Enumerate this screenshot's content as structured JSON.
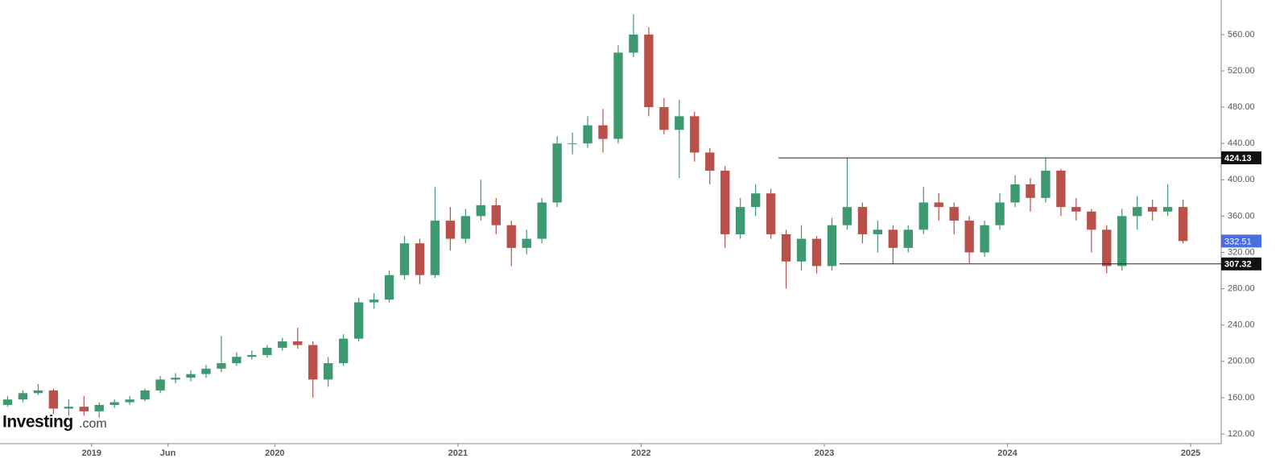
{
  "chart_data": {
    "type": "candlestick",
    "x": [
      "2018-07",
      "2018-08",
      "2018-09",
      "2018-10",
      "2018-11",
      "2018-12",
      "2019-01",
      "2019-02",
      "2019-03",
      "2019-04",
      "2019-05",
      "2019-06",
      "2019-07",
      "2019-08",
      "2019-09",
      "2019-10",
      "2019-11",
      "2019-12",
      "2020-01",
      "2020-02",
      "2020-03",
      "2020-04",
      "2020-05",
      "2020-06",
      "2020-07",
      "2020-08",
      "2020-09",
      "2020-10",
      "2020-11",
      "2020-12",
      "2021-01",
      "2021-02",
      "2021-03",
      "2021-04",
      "2021-05",
      "2021-06",
      "2021-07",
      "2021-08",
      "2021-09",
      "2021-10",
      "2021-11",
      "2021-12",
      "2022-01",
      "2022-02",
      "2022-03",
      "2022-04",
      "2022-05",
      "2022-06",
      "2022-07",
      "2022-08",
      "2022-09",
      "2022-10",
      "2022-11",
      "2022-12",
      "2023-01",
      "2023-02",
      "2023-03",
      "2023-04",
      "2023-05",
      "2023-06",
      "2023-07",
      "2023-08",
      "2023-09",
      "2023-10",
      "2023-11",
      "2023-12",
      "2024-01",
      "2024-02",
      "2024-03",
      "2024-04",
      "2024-05",
      "2024-06",
      "2024-07",
      "2024-08",
      "2024-09",
      "2024-10",
      "2024-11",
      "2024-12"
    ],
    "open": [
      152,
      158,
      165,
      168,
      148,
      150,
      145,
      152,
      155,
      158,
      168,
      180,
      182,
      186,
      192,
      198,
      205,
      207,
      215,
      222,
      218,
      180,
      198,
      225,
      265,
      268,
      295,
      330,
      295,
      355,
      335,
      360,
      372,
      350,
      325,
      335,
      375,
      440,
      440,
      460,
      445,
      540,
      560,
      480,
      455,
      470,
      430,
      410,
      340,
      370,
      385,
      340,
      310,
      335,
      305,
      350,
      370,
      340,
      345,
      325,
      345,
      375,
      370,
      355,
      320,
      350,
      375,
      395,
      380,
      410,
      370,
      365,
      345,
      305,
      360,
      370,
      365,
      370
    ],
    "high": [
      162,
      168,
      175,
      170,
      158,
      162,
      155,
      158,
      162,
      170,
      184,
      187,
      190,
      196,
      228,
      210,
      212,
      218,
      226,
      237,
      222,
      205,
      230,
      270,
      275,
      300,
      338,
      335,
      392,
      370,
      368,
      400,
      380,
      355,
      345,
      380,
      448,
      452,
      470,
      478,
      548,
      582,
      568,
      490,
      488,
      475,
      435,
      415,
      380,
      395,
      390,
      345,
      350,
      338,
      358,
      424.13,
      375,
      355,
      350,
      350,
      392,
      385,
      375,
      360,
      355,
      385,
      405,
      402,
      424,
      412,
      380,
      368,
      350,
      368,
      382,
      378,
      395,
      378
    ],
    "low": [
      150,
      155,
      163,
      142,
      140,
      140,
      138,
      149,
      152,
      156,
      165,
      176,
      178,
      182,
      188,
      195,
      202,
      204,
      212,
      214,
      160,
      172,
      195,
      222,
      258,
      265,
      290,
      285,
      292,
      322,
      330,
      355,
      340,
      305,
      318,
      330,
      370,
      428,
      435,
      430,
      440,
      535,
      470,
      450,
      402,
      420,
      395,
      325,
      335,
      360,
      335,
      280,
      300,
      297,
      300,
      345,
      330,
      320,
      307.32,
      320,
      340,
      355,
      340,
      308,
      315,
      345,
      370,
      365,
      375,
      360,
      355,
      320,
      297,
      300,
      345,
      355,
      360,
      330
    ],
    "close": [
      158,
      165,
      168,
      148,
      150,
      145,
      152,
      155,
      158,
      168,
      180,
      182,
      186,
      192,
      198,
      205,
      207,
      215,
      222,
      218,
      180,
      198,
      225,
      265,
      268,
      295,
      330,
      295,
      355,
      335,
      360,
      372,
      350,
      325,
      335,
      375,
      440,
      440,
      460,
      445,
      540,
      560,
      480,
      455,
      470,
      430,
      410,
      340,
      370,
      385,
      340,
      310,
      335,
      305,
      350,
      370,
      340,
      345,
      325,
      345,
      375,
      370,
      355,
      320,
      350,
      375,
      395,
      380,
      410,
      370,
      365,
      345,
      305,
      360,
      370,
      365,
      370,
      332.51
    ],
    "up_color": "#3d9970",
    "down_color": "#b9504a",
    "last_color": "#4a6ee0",
    "xlim": [
      "2018-07",
      "2025-03"
    ],
    "xticks": [
      {
        "value": "2019-01",
        "label": "2019"
      },
      {
        "value": "2019-06",
        "label": "Jun"
      },
      {
        "value": "2020-01",
        "label": "2020"
      },
      {
        "value": "2021-01",
        "label": "2021"
      },
      {
        "value": "2022-01",
        "label": "2022"
      },
      {
        "value": "2023-01",
        "label": "2023"
      },
      {
        "value": "2024-01",
        "label": "2024"
      },
      {
        "value": "2025-01",
        "label": "2025"
      }
    ],
    "ylim": [
      109.4,
      598
    ],
    "yticks": [
      {
        "value": 120,
        "label": "120.00"
      },
      {
        "value": 160,
        "label": "160.00"
      },
      {
        "value": 200,
        "label": "200.00"
      },
      {
        "value": 240,
        "label": "240.00"
      },
      {
        "value": 280,
        "label": "280.00"
      },
      {
        "value": 320,
        "label": "320.00"
      },
      {
        "value": 360,
        "label": "360.00"
      },
      {
        "value": 400,
        "label": "400.00"
      },
      {
        "value": 440,
        "label": "440.00"
      },
      {
        "value": 480,
        "label": "480.00"
      },
      {
        "value": 520,
        "label": "520.00"
      },
      {
        "value": 560,
        "label": "560.00"
      }
    ],
    "levels": [
      {
        "value": 424.13,
        "from": "2022-10"
      },
      {
        "value": 307.32,
        "from": "2023-02"
      }
    ],
    "watermark": {
      "brand": "Investing",
      "suffix": ".com"
    }
  }
}
